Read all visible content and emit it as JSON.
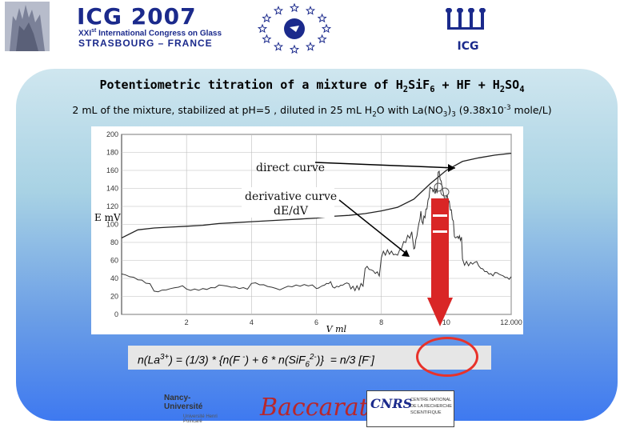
{
  "header": {
    "title": "ICG 2007",
    "line1": "XXI<sup>st</sup> International Congress on Glass",
    "line2": "STRASBOURG – FRANCE",
    "right_logo_text": "ICG"
  },
  "slide": {
    "title": "Potentiometric titration of a mixture of H<sub>2</sub>SiF<sub>6</sub> + HF + H<sub>2</sub>SO<sub>4</sub>",
    "subtitle": "2 mL of the mixture, stabilized at pH=5 , diluted in 25 mL H<sub>2</sub>O with La(NO<sub>3</sub>)<sub>3</sub> (9.38x10<sup>-3</sup> mole/L)",
    "formula": "n(La<sup>3+</sup>) = (1/3) * {n(F <sup>-</sup>) + 6 * n(SiF<sub>6</sub><sup>2-</sup>)} &nbsp;= n/3 [F<sup>-</sup>]"
  },
  "chart_data": {
    "type": "line",
    "ylabel": "E mV",
    "xlabel": "V ml",
    "xlim": [
      0,
      12
    ],
    "ylim": [
      0,
      200
    ],
    "x_ticks": [
      "2",
      "4",
      "6",
      "8",
      "10",
      "12.000"
    ],
    "y_ticks": [
      "0",
      "20",
      "40",
      "60",
      "80",
      "100",
      "120",
      "140",
      "160",
      "180",
      "200"
    ],
    "annotations": [
      "direct curve",
      "derivative curve",
      "dE/dV"
    ],
    "series": [
      {
        "name": "direct curve",
        "x": [
          0,
          0.5,
          1,
          1.5,
          2,
          2.5,
          3,
          3.5,
          4,
          4.5,
          5,
          5.5,
          6,
          6.5,
          7,
          7.5,
          8,
          8.5,
          9,
          9.5,
          10,
          10.5,
          11,
          11.5,
          12
        ],
        "values": [
          85,
          94,
          96,
          97,
          98,
          99,
          101,
          102,
          103,
          104,
          105,
          106,
          107,
          109,
          110,
          112,
          115,
          119,
          128,
          145,
          160,
          170,
          174,
          177,
          179
        ]
      },
      {
        "name": "derivative curve",
        "x": [
          0,
          1,
          2,
          3,
          4,
          5,
          6,
          6.5,
          7,
          7.5,
          8,
          8.5,
          9,
          9.25,
          9.5,
          9.75,
          10,
          10.25,
          10.5,
          11,
          11.5,
          12
        ],
        "values": [
          45,
          28,
          30,
          32,
          32,
          28,
          30,
          33,
          35,
          45,
          55,
          65,
          80,
          110,
          140,
          150,
          125,
          90,
          70,
          55,
          45,
          42
        ]
      }
    ]
  },
  "footer": {
    "logo1": "Nancy-Université",
    "logo1_sub": "Université Henri Poincaré",
    "logo2": "Baccarat",
    "logo3": "CNRS",
    "logo3_text": [
      "CENTRE NATIONAL",
      "DE LA RECHERCHE",
      "SCIENTIFIQUE"
    ]
  }
}
